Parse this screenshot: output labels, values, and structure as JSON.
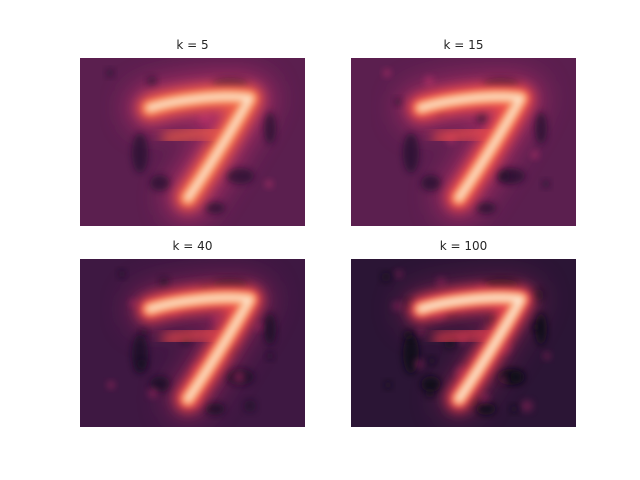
{
  "figure": {
    "panels": [
      {
        "title": "k = 5",
        "background": "#5b1f4f",
        "ringColor": "#c0326b",
        "darkColor": "#1d0f2a",
        "hotColor": "#fde0c5",
        "midColor": "#ec5a47",
        "ghost": 0.55,
        "noise": 0.15
      },
      {
        "title": "k = 15",
        "background": "#5b1f4f",
        "ringColor": "#c0326b",
        "darkColor": "#1d0f2a",
        "hotColor": "#fde0c5",
        "midColor": "#ed4b4a",
        "ghost": 0.4,
        "noise": 0.25
      },
      {
        "title": "k = 40",
        "background": "#3e1842",
        "ringColor": "#a3275e",
        "darkColor": "#130b20",
        "hotColor": "#fde0c5",
        "midColor": "#e8474a",
        "ghost": 0.3,
        "noise": 0.45
      },
      {
        "title": "k = 100",
        "background": "#2b1535",
        "ringColor": "#8a2058",
        "darkColor": "#0d0718",
        "hotColor": "#fde6d0",
        "midColor": "#e23e4d",
        "ghost": 0.2,
        "noise": 0.75
      }
    ]
  }
}
